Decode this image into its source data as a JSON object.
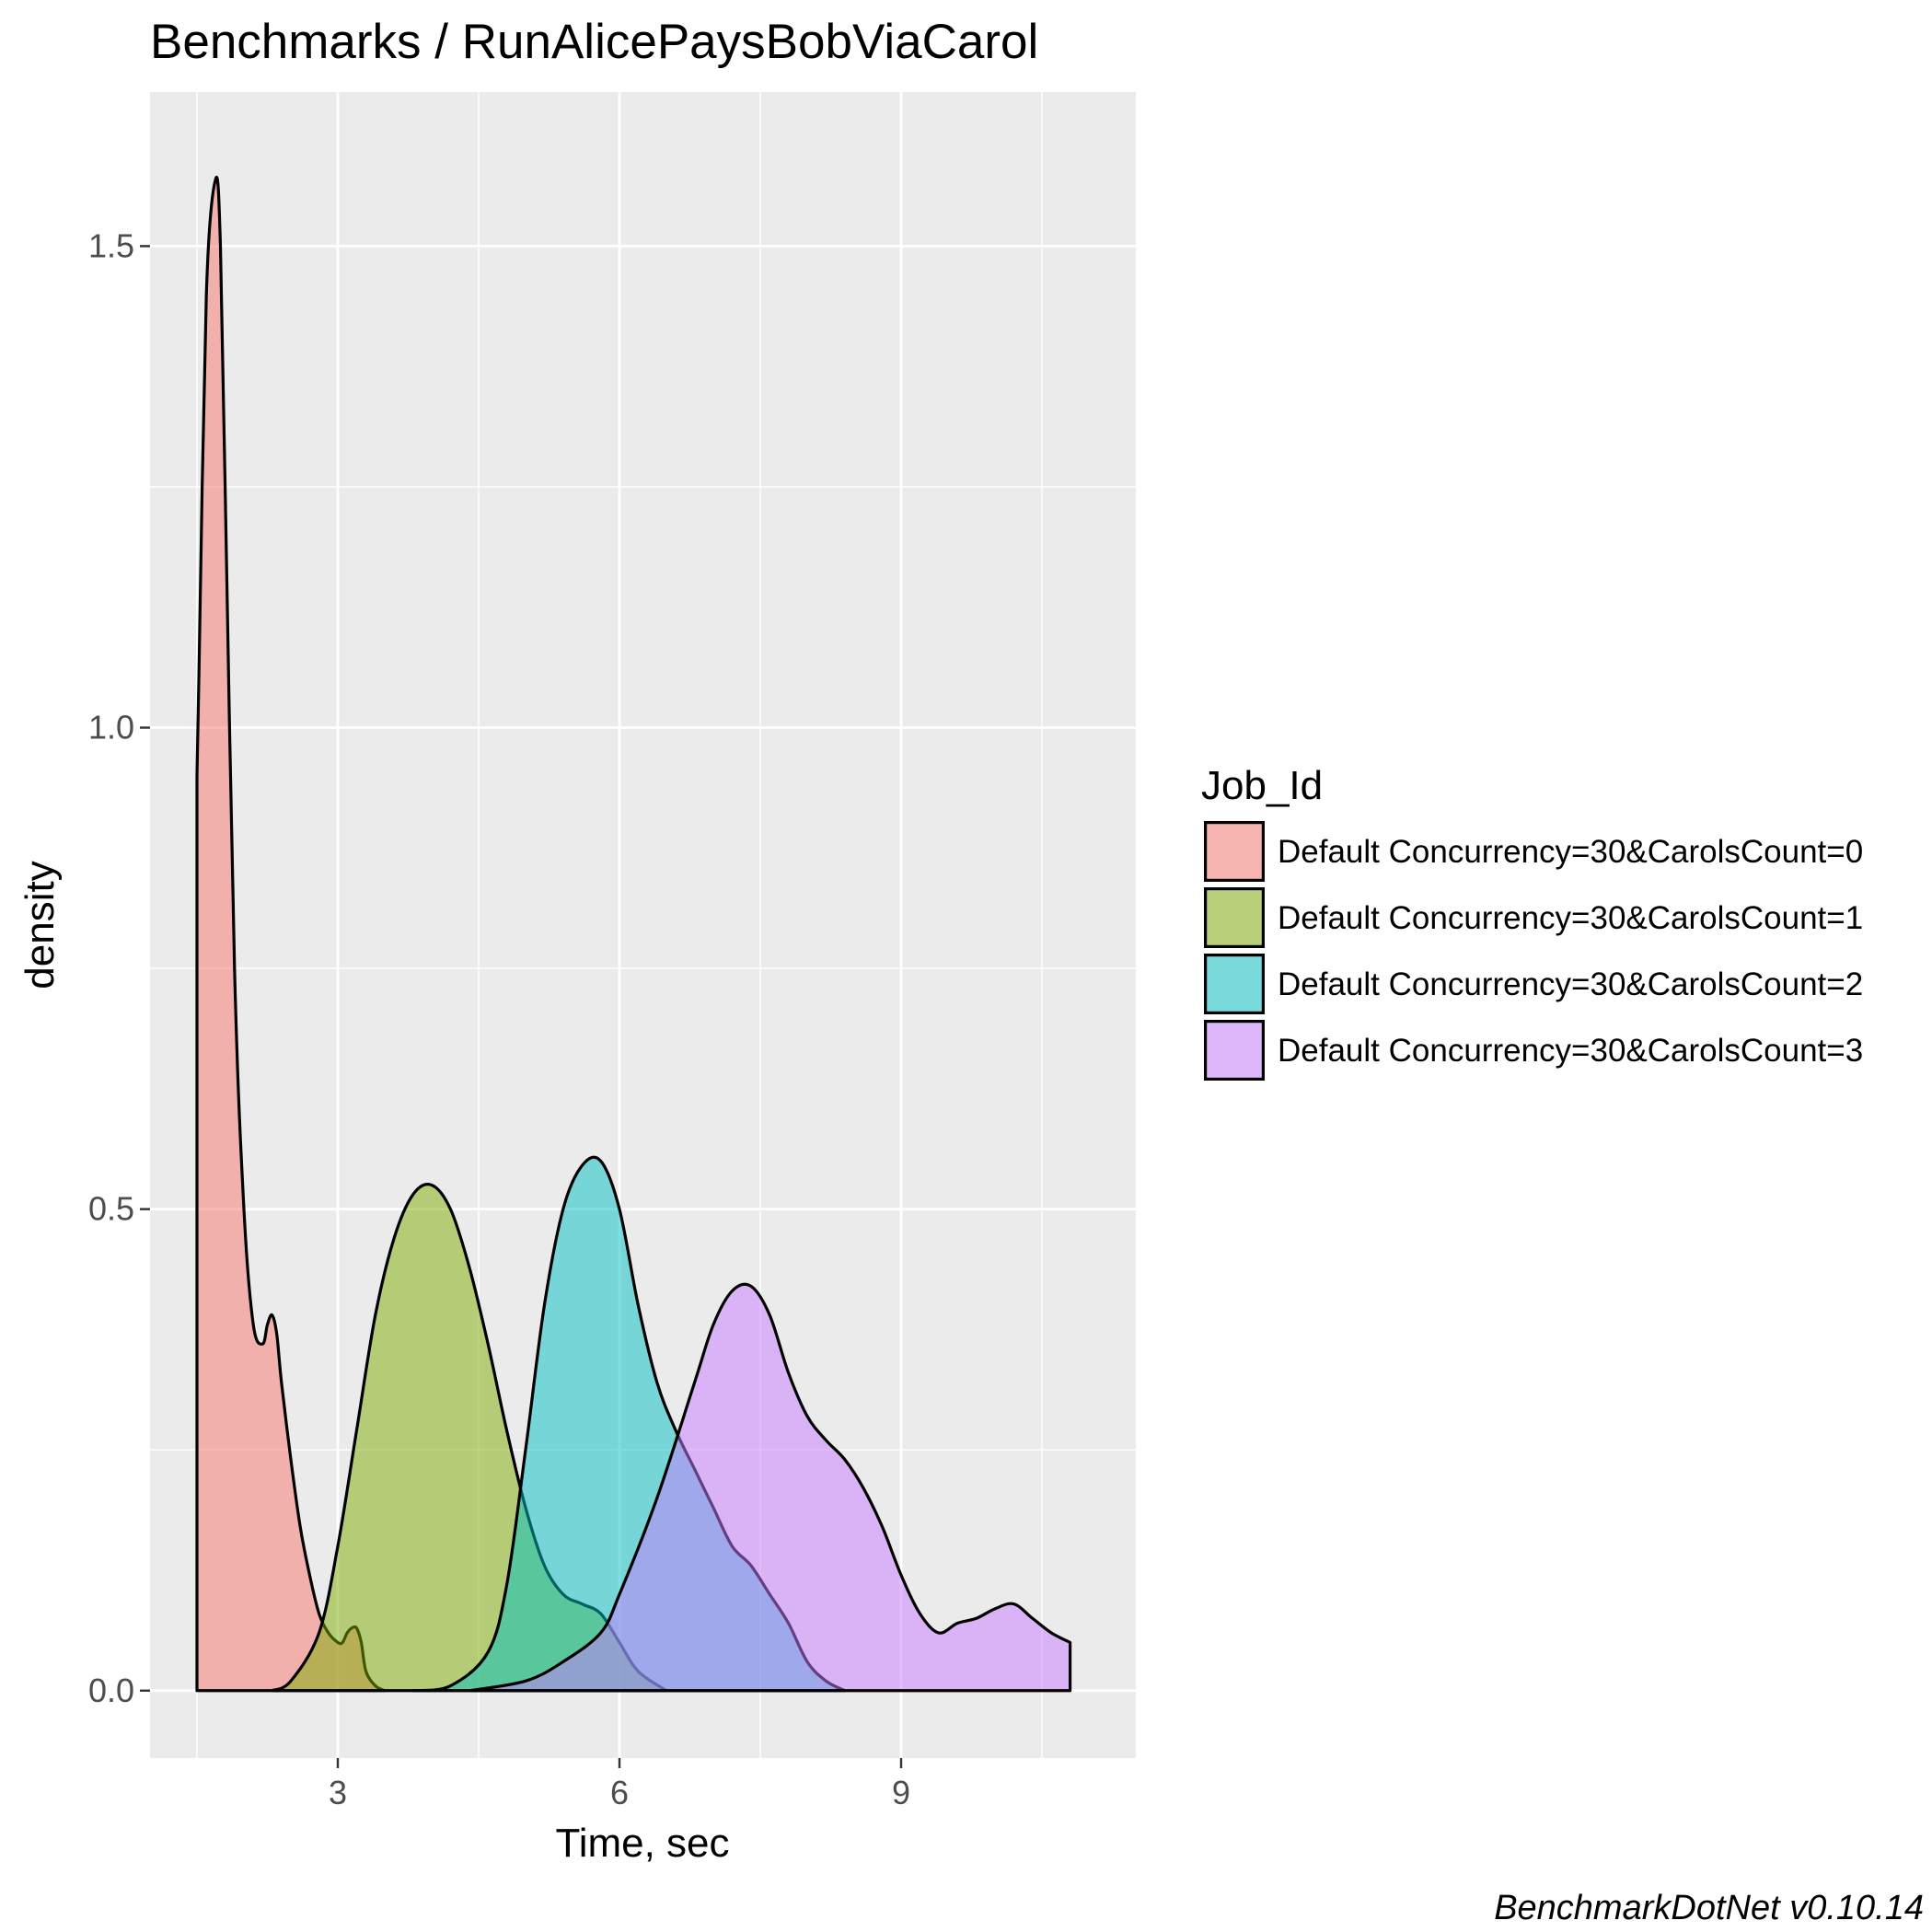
{
  "chart_data": {
    "type": "area",
    "subtype": "density",
    "title": "Benchmarks / RunAlicePaysBobViaCarol",
    "xlabel": "Time, sec",
    "ylabel": "density",
    "xlim": [
      1.0,
      11.5
    ],
    "ylim": [
      -0.07,
      1.66
    ],
    "x_ticks": [
      3,
      6,
      9
    ],
    "x_tick_labels": [
      "3",
      "6",
      "9"
    ],
    "y_ticks": [
      0.0,
      0.5,
      1.0,
      1.5
    ],
    "y_tick_labels": [
      "0.0",
      "0.5",
      "1.0",
      "1.5"
    ],
    "grid": true,
    "legend": {
      "title": "Job_Id",
      "position": "right"
    },
    "caption": "BenchmarkDotNet v0.10.14",
    "series": [
      {
        "name": "Default Concurrency=30&CarolsCount=0",
        "color": "#F8766D",
        "x": [
          1.5,
          1.52,
          1.6,
          1.7,
          1.75,
          1.8,
          1.9,
          2.0,
          2.1,
          2.2,
          2.25,
          2.3,
          2.35,
          2.4,
          2.5,
          2.6,
          2.7,
          2.8,
          2.9,
          3.0,
          3.05,
          3.1,
          3.15,
          3.2,
          3.25,
          3.3,
          3.4,
          3.5
        ],
        "y": [
          0.95,
          1.05,
          1.45,
          1.57,
          1.5,
          1.25,
          0.75,
          0.5,
          0.38,
          0.36,
          0.38,
          0.39,
          0.37,
          0.32,
          0.24,
          0.17,
          0.12,
          0.08,
          0.06,
          0.05,
          0.05,
          0.06,
          0.065,
          0.065,
          0.05,
          0.02,
          0.005,
          0.0
        ]
      },
      {
        "name": "Default Concurrency=30&CarolsCount=1",
        "color": "#7CAE00",
        "x": [
          2.3,
          2.5,
          2.8,
          3.0,
          3.2,
          3.4,
          3.6,
          3.8,
          4.0,
          4.2,
          4.4,
          4.6,
          4.8,
          5.0,
          5.2,
          5.4,
          5.6,
          5.8,
          6.0,
          6.2,
          6.5
        ],
        "y": [
          0.0,
          0.01,
          0.06,
          0.15,
          0.27,
          0.39,
          0.47,
          0.515,
          0.525,
          0.5,
          0.44,
          0.36,
          0.27,
          0.19,
          0.13,
          0.1,
          0.09,
          0.08,
          0.05,
          0.02,
          0.0
        ]
      },
      {
        "name": "Default Concurrency=30&CarolsCount=2",
        "color": "#00BFC4",
        "x": [
          3.8,
          4.2,
          4.6,
          4.8,
          5.0,
          5.2,
          5.4,
          5.6,
          5.8,
          6.0,
          6.2,
          6.4,
          6.6,
          6.8,
          7.0,
          7.2,
          7.4,
          7.6,
          7.8,
          8.0,
          8.2,
          8.4
        ],
        "y": [
          0.0,
          0.005,
          0.04,
          0.11,
          0.25,
          0.4,
          0.5,
          0.545,
          0.55,
          0.5,
          0.4,
          0.32,
          0.27,
          0.23,
          0.19,
          0.15,
          0.13,
          0.1,
          0.07,
          0.03,
          0.01,
          0.0
        ]
      },
      {
        "name": "Default Concurrency=30&CarolsCount=3",
        "color": "#C77CFF",
        "x": [
          4.4,
          5.0,
          5.4,
          5.8,
          6.0,
          6.4,
          6.8,
          7.0,
          7.2,
          7.4,
          7.6,
          7.8,
          8.0,
          8.2,
          8.4,
          8.6,
          8.8,
          9.0,
          9.2,
          9.4,
          9.6,
          9.8,
          10.0,
          10.2,
          10.4,
          10.6,
          10.8
        ],
        "y": [
          0.0,
          0.01,
          0.03,
          0.06,
          0.1,
          0.2,
          0.32,
          0.38,
          0.415,
          0.42,
          0.39,
          0.33,
          0.285,
          0.26,
          0.24,
          0.21,
          0.17,
          0.12,
          0.08,
          0.06,
          0.07,
          0.075,
          0.085,
          0.09,
          0.075,
          0.06,
          0.05
        ]
      }
    ]
  }
}
